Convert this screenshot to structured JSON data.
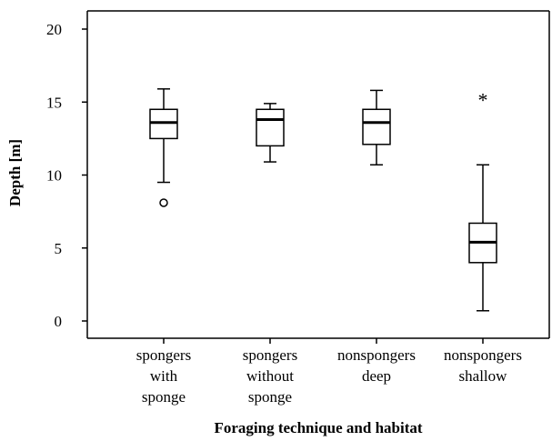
{
  "chart_data": {
    "type": "box",
    "xlabel": "Foraging technique and habitat",
    "ylabel": "Depth [m]",
    "ylim": [
      0,
      20
    ],
    "yticks": [
      "0",
      "5",
      "10",
      "15",
      "20"
    ],
    "grid": false,
    "colors": {
      "line": "#000000",
      "box_fill": "#ffffff"
    },
    "categories": [
      {
        "lines": [
          "spongers",
          "with",
          "sponge"
        ]
      },
      {
        "lines": [
          "spongers",
          "without",
          "sponge"
        ]
      },
      {
        "lines": [
          "nonspongers",
          "deep"
        ]
      },
      {
        "lines": [
          "nonspongers",
          "shallow"
        ]
      }
    ],
    "boxes": [
      {
        "whisker_low": 9.5,
        "q1": 12.5,
        "median": 13.6,
        "q3": 14.5,
        "whisker_high": 15.9,
        "outliers": [
          {
            "value": 8.1,
            "marker": "circle"
          }
        ]
      },
      {
        "whisker_low": 10.9,
        "q1": 12.0,
        "median": 13.8,
        "q3": 14.5,
        "whisker_high": 14.9,
        "outliers": []
      },
      {
        "whisker_low": 10.7,
        "q1": 12.1,
        "median": 13.6,
        "q3": 14.5,
        "whisker_high": 15.8,
        "outliers": []
      },
      {
        "whisker_low": 0.7,
        "q1": 4.0,
        "median": 5.4,
        "q3": 6.7,
        "whisker_high": 10.7,
        "outliers": [
          {
            "value": 15.3,
            "marker": "star"
          }
        ]
      }
    ]
  }
}
